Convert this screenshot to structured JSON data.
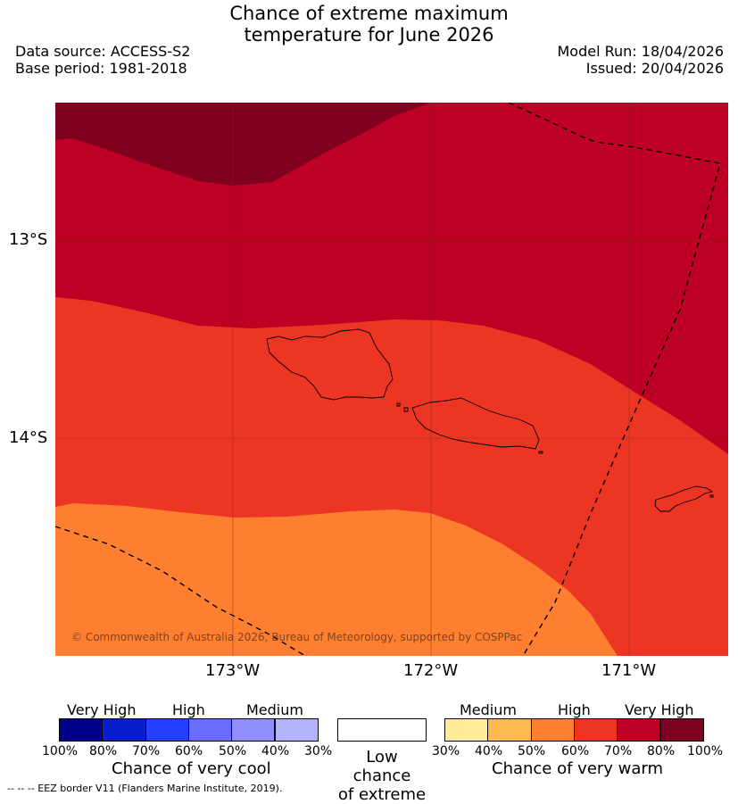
{
  "title_line1": "Chance of extreme maximum",
  "title_line2": "temperature for June 2026",
  "data_source": "Data source: ACCESS-S2",
  "base_period": "Base period: 1981-2018",
  "model_run": "Model Run: 18/04/2026",
  "issued": "Issued: 20/04/2026",
  "map": {
    "lat_labels": [
      "13°S",
      "14°S"
    ],
    "lon_labels": [
      "173°W",
      "172°W",
      "171°W"
    ],
    "copyright": "© Commonwealth of Australia 2026, Bureau of Meteorology, supported by COSPPac",
    "colors": {
      "very_high_warm_dark": "#800020",
      "very_high_warm": "#bd0023",
      "high_warm": "#ec3623",
      "medium_high_warm": "#fd7f2f",
      "medium_warm": "#fdb84f",
      "land_outline": "#000000"
    }
  },
  "legend": {
    "cool": {
      "categories": [
        "Very High",
        "High",
        "Medium"
      ],
      "ticks": [
        "100%",
        "80%",
        "70%",
        "60%",
        "50%",
        "40%",
        "30%"
      ],
      "colors": [
        "#00008b",
        "#0a1ecc",
        "#2540ff",
        "#6a6cff",
        "#8f8fff",
        "#b3b2ff"
      ],
      "caption": "Chance of very cool"
    },
    "neutral": {
      "caption_line1": "Low chance",
      "caption_line2": "of extreme",
      "color": "#ffffff"
    },
    "warm": {
      "categories": [
        "Medium",
        "High",
        "Very High"
      ],
      "ticks": [
        "30%",
        "40%",
        "50%",
        "60%",
        "70%",
        "80%",
        "100%"
      ],
      "colors": [
        "#ffeb9a",
        "#fdb84f",
        "#fd7f2f",
        "#ec3623",
        "#bd0023",
        "#800020"
      ],
      "caption": "Chance of very warm"
    }
  },
  "footnote": "--  --  -- EEZ border V11 (Flanders Marine Institute, 2019)."
}
